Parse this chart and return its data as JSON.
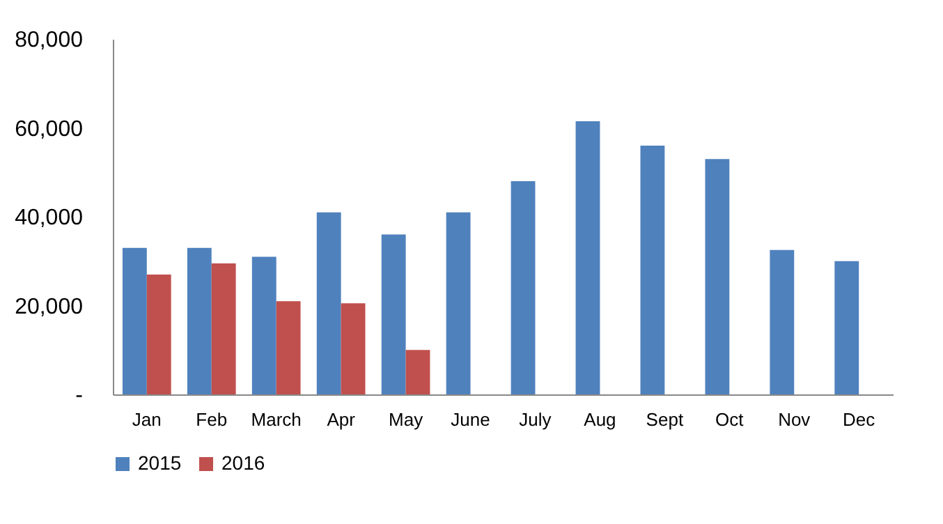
{
  "chart_data": {
    "type": "bar",
    "categories": [
      "Jan",
      "Feb",
      "March",
      "Apr",
      "May",
      "June",
      "July",
      "Aug",
      "Sept",
      "Oct",
      "Nov",
      "Dec"
    ],
    "series": [
      {
        "name": "2015",
        "color": "#4f81bd",
        "values": [
          33000,
          33000,
          31000,
          41000,
          36000,
          41000,
          48000,
          61500,
          56000,
          53000,
          32500,
          30000
        ]
      },
      {
        "name": "2016",
        "color": "#c0504d",
        "values": [
          27000,
          29500,
          21000,
          20500,
          10000,
          null,
          null,
          null,
          null,
          null,
          null,
          null
        ]
      }
    ],
    "ylim": [
      0,
      80000
    ],
    "yticks": [
      {
        "value": 0,
        "label": "-"
      },
      {
        "value": 20000,
        "label": "20,000"
      },
      {
        "value": 40000,
        "label": "40,000"
      },
      {
        "value": 60000,
        "label": "60,000"
      },
      {
        "value": 80000,
        "label": "80,000"
      }
    ],
    "grid": false,
    "legend": "bottom"
  }
}
